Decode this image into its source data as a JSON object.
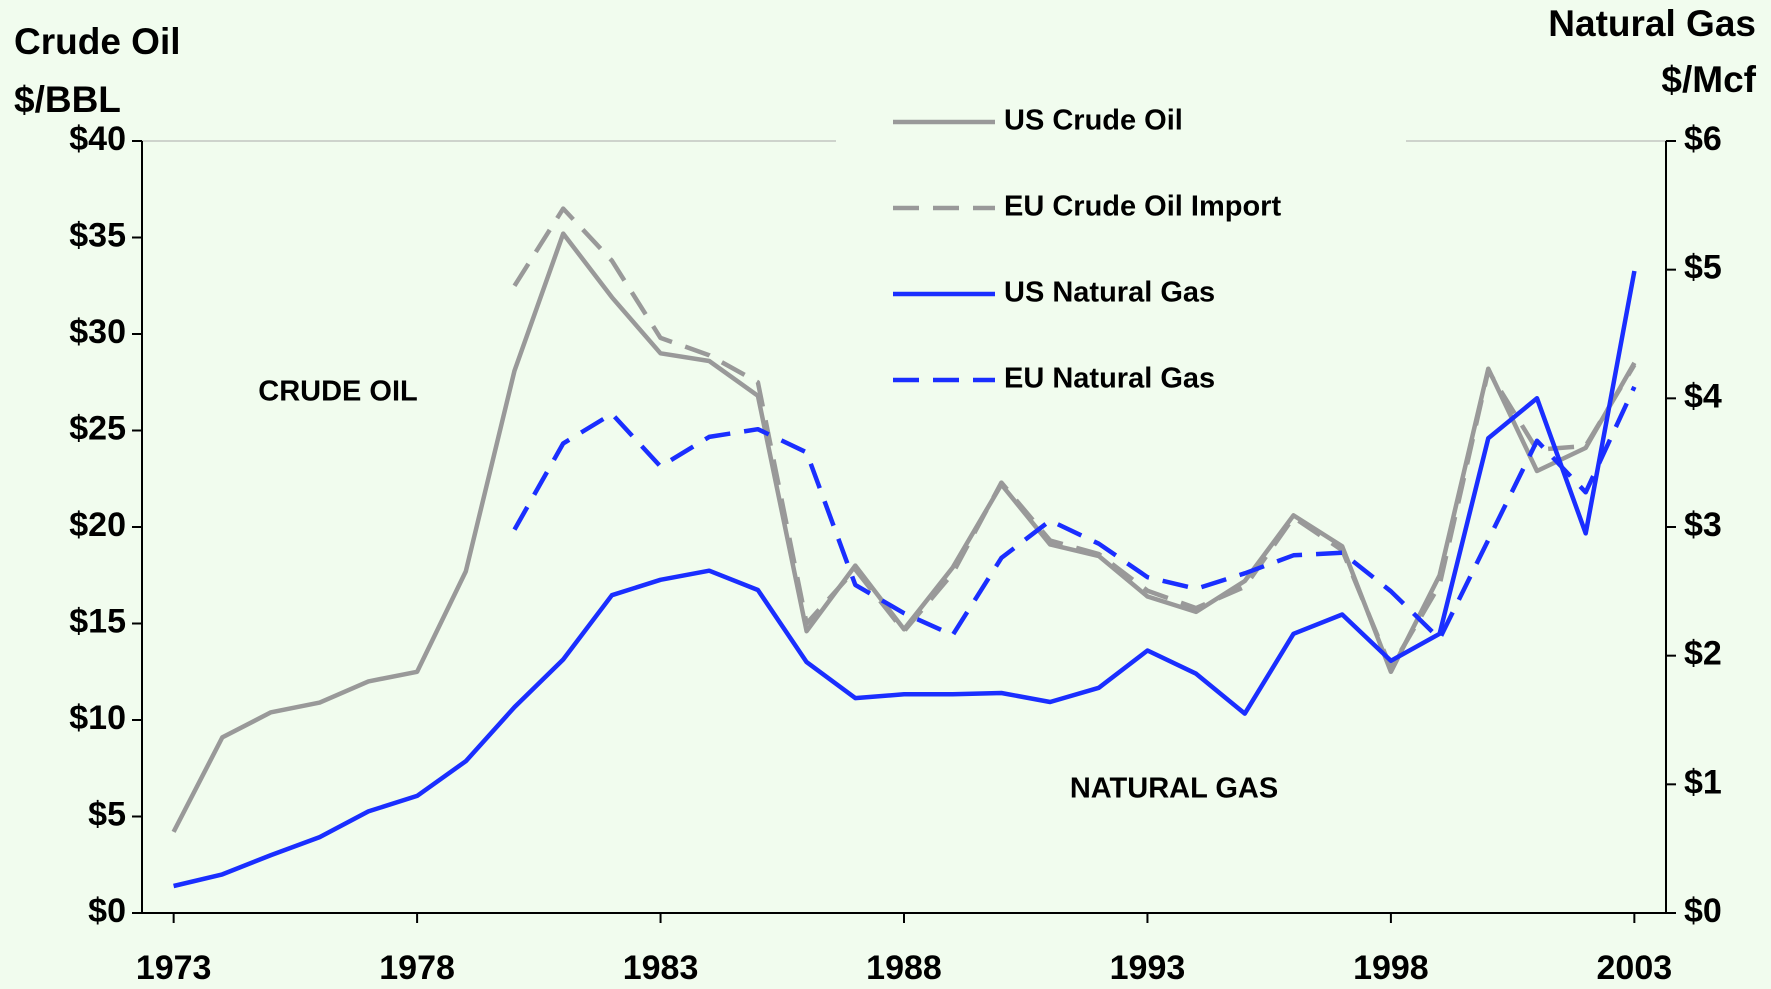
{
  "chart_data": {
    "type": "line",
    "ylabel": [
      "Crude Oil",
      "$/BBL"
    ],
    "y2label": [
      "Natural Gas",
      "$/Mcf"
    ],
    "annotations": [
      "CRUDE OIL",
      "NATURAL GAS"
    ],
    "x": [
      1973,
      1974,
      1975,
      1976,
      1977,
      1978,
      1979,
      1980,
      1981,
      1982,
      1983,
      1984,
      1985,
      1986,
      1987,
      1988,
      1989,
      1990,
      1991,
      1992,
      1993,
      1994,
      1995,
      1996,
      1997,
      1998,
      1999,
      2000,
      2001,
      2002,
      2003
    ],
    "xlim": [
      1972.35,
      2003.65
    ],
    "xticks": [
      1973,
      1978,
      1983,
      1988,
      1993,
      1998,
      2003
    ],
    "ylim": [
      0,
      40
    ],
    "yticks": [
      {
        "value": 0,
        "label": "$0"
      },
      {
        "value": 5,
        "label": "$5"
      },
      {
        "value": 10,
        "label": "$10"
      },
      {
        "value": 15,
        "label": "$15"
      },
      {
        "value": 20,
        "label": "$20"
      },
      {
        "value": 25,
        "label": "$25"
      },
      {
        "value": 30,
        "label": "$30"
      },
      {
        "value": 35,
        "label": "$35"
      },
      {
        "value": 40,
        "label": "$40"
      }
    ],
    "y2lim": [
      0,
      6
    ],
    "y2ticks": [
      {
        "value": 0,
        "label": "$0"
      },
      {
        "value": 1,
        "label": "$1"
      },
      {
        "value": 2,
        "label": "$2"
      },
      {
        "value": 3,
        "label": "$3"
      },
      {
        "value": 4,
        "label": "$4"
      },
      {
        "value": 5,
        "label": "$5"
      },
      {
        "value": 6,
        "label": "$6"
      }
    ],
    "series": [
      {
        "name": "US Crude Oil",
        "color": "#999999",
        "dash": false,
        "values": [
          4.2,
          9.1,
          10.4,
          10.9,
          12.0,
          12.5,
          17.7,
          28.1,
          35.2,
          31.9,
          29.0,
          28.6,
          26.8,
          14.6,
          18.0,
          14.7,
          17.9,
          22.2,
          19.1,
          18.5,
          16.4,
          15.6,
          17.2,
          20.6,
          19.0,
          12.5,
          17.5,
          28.2,
          22.9,
          24.1,
          28.5
        ]
      },
      {
        "name": "EU Crude Oil Import",
        "color": "#999999",
        "dash": true,
        "values": [
          null,
          null,
          null,
          null,
          null,
          null,
          null,
          32.5,
          36.5,
          33.8,
          29.8,
          28.9,
          27.5,
          15.0,
          17.8,
          14.6,
          17.6,
          22.3,
          19.3,
          18.6,
          16.7,
          15.8,
          16.9,
          20.5,
          18.8,
          12.7,
          17.0,
          28.1,
          24.0,
          24.2,
          28.4
        ]
      },
      {
        "name": "US Natural Gas",
        "color": "#1a2eff",
        "dash": false,
        "axis": "y2",
        "values": [
          0.21,
          0.3,
          0.45,
          0.59,
          0.79,
          0.91,
          1.18,
          1.6,
          1.97,
          2.47,
          2.59,
          2.66,
          2.51,
          1.95,
          1.67,
          1.7,
          1.7,
          1.71,
          1.64,
          1.75,
          2.04,
          1.86,
          1.55,
          2.17,
          2.32,
          1.96,
          2.17,
          3.69,
          4.0,
          2.95,
          4.99
        ]
      },
      {
        "name": "EU Natural Gas",
        "color": "#1a2eff",
        "dash": true,
        "axis": "y2",
        "values": [
          null,
          null,
          null,
          null,
          null,
          null,
          null,
          2.98,
          3.65,
          3.88,
          3.47,
          3.7,
          3.76,
          3.58,
          2.55,
          2.33,
          2.16,
          2.76,
          3.05,
          2.87,
          2.61,
          2.52,
          2.64,
          2.78,
          2.8,
          2.5,
          2.13,
          2.9,
          3.67,
          3.27,
          4.09
        ]
      }
    ]
  }
}
